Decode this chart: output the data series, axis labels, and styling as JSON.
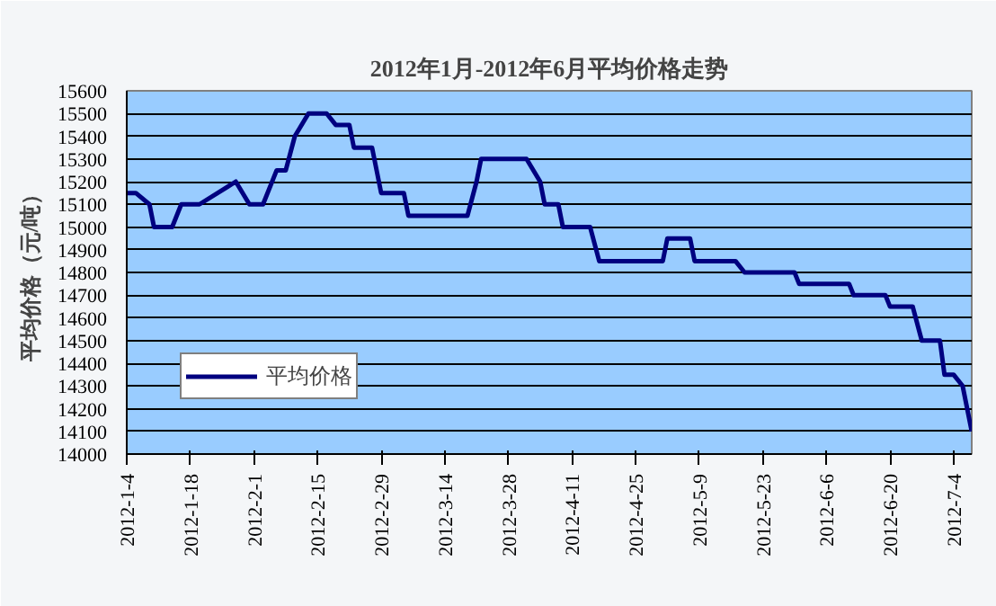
{
  "chart_data": {
    "type": "line",
    "title": "2012年1月-2012年6月平均价格走势",
    "ylabel": "平均价格（元/吨）",
    "x": [
      "2012-01-04",
      "2012-01-06",
      "2012-01-09",
      "2012-01-10",
      "2012-01-14",
      "2012-01-16",
      "2012-01-20",
      "2012-01-28",
      "2012-01-31",
      "2012-02-03",
      "2012-02-06",
      "2012-02-08",
      "2012-02-10",
      "2012-02-13",
      "2012-02-17",
      "2012-02-19",
      "2012-02-22",
      "2012-02-23",
      "2012-02-27",
      "2012-02-28",
      "2012-02-29",
      "2012-03-05",
      "2012-03-06",
      "2012-03-19",
      "2012-03-21",
      "2012-03-22",
      "2012-04-01",
      "2012-04-04",
      "2012-04-05",
      "2012-04-08",
      "2012-04-09",
      "2012-04-15",
      "2012-04-17",
      "2012-05-01",
      "2012-05-02",
      "2012-05-07",
      "2012-05-08",
      "2012-05-17",
      "2012-05-19",
      "2012-05-30",
      "2012-05-31",
      "2012-06-11",
      "2012-06-12",
      "2012-06-19",
      "2012-06-20",
      "2012-06-25",
      "2012-06-27",
      "2012-07-01",
      "2012-07-02",
      "2012-07-04",
      "2012-07-06",
      "2012-07-07",
      "2012-07-08"
    ],
    "series": [
      {
        "name": "平均价格",
        "color": "#000080",
        "values": [
          15150,
          15150,
          15100,
          15000,
          15000,
          15100,
          15100,
          15200,
          15100,
          15100,
          15250,
          15250,
          15400,
          15500,
          15500,
          15450,
          15450,
          15350,
          15350,
          15250,
          15150,
          15150,
          15050,
          15050,
          15200,
          15300,
          15300,
          15200,
          15100,
          15100,
          15000,
          15000,
          14850,
          14850,
          14950,
          14950,
          14850,
          14850,
          14800,
          14800,
          14750,
          14750,
          14700,
          14700,
          14650,
          14650,
          14500,
          14500,
          14350,
          14350,
          14300,
          14200,
          14100
        ]
      }
    ],
    "xlim": [
      "2012-01-04",
      "2012-07-08"
    ],
    "xticks": [
      {
        "value": "2012-01-04",
        "label": "2012-1-4"
      },
      {
        "value": "2012-01-18",
        "label": "2012-1-18"
      },
      {
        "value": "2012-02-01",
        "label": "2012-2-1"
      },
      {
        "value": "2012-02-15",
        "label": "2012-2-15"
      },
      {
        "value": "2012-02-29",
        "label": "2012-2-29"
      },
      {
        "value": "2012-03-14",
        "label": "2012-3-14"
      },
      {
        "value": "2012-03-28",
        "label": "2012-3-28"
      },
      {
        "value": "2012-04-11",
        "label": "2012-4-11"
      },
      {
        "value": "2012-04-25",
        "label": "2012-4-25"
      },
      {
        "value": "2012-05-09",
        "label": "2012-5-9"
      },
      {
        "value": "2012-05-23",
        "label": "2012-5-23"
      },
      {
        "value": "2012-06-06",
        "label": "2012-6-6"
      },
      {
        "value": "2012-06-20",
        "label": "2012-6-20"
      },
      {
        "value": "2012-07-04",
        "label": "2012-7-4"
      }
    ],
    "ylim": [
      14000,
      15600
    ],
    "yticks": [
      14000,
      14100,
      14200,
      14300,
      14400,
      14500,
      14600,
      14700,
      14800,
      14900,
      15000,
      15100,
      15200,
      15300,
      15400,
      15500,
      15600
    ],
    "grid": "y",
    "legend": "bottom left",
    "marker": "none",
    "line_style": "solid"
  }
}
